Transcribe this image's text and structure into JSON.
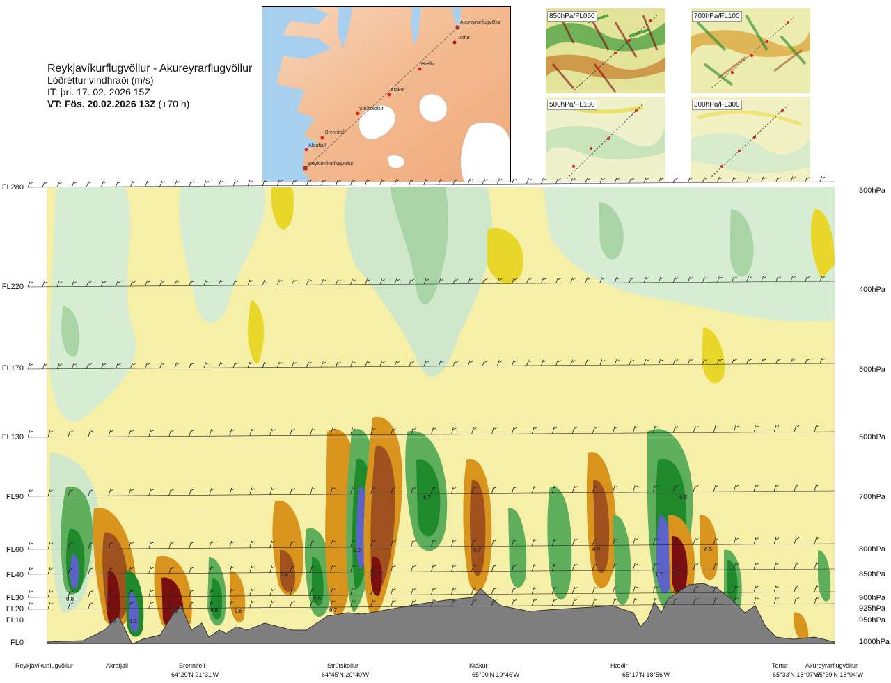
{
  "header": {
    "route": "Reykjavíkurflugvöllur - Akureyrarflugvöllur",
    "parameter": "Lóðréttur vindhraði (m/s)",
    "issue_time": "IT: þri. 17. 02. 2026 15Z",
    "valid_time": "VT: Fös. 20.02.2026 13Z",
    "lead_time": "(+70 h)"
  },
  "route_map": {
    "points": [
      {
        "name": "Akureyrarflugvöllur"
      },
      {
        "name": "Torfur"
      },
      {
        "name": "Hæðir"
      },
      {
        "name": "Krákur"
      },
      {
        "name": "Strútskollur"
      },
      {
        "name": "Brennifell"
      },
      {
        "name": "Akrafjall"
      },
      {
        "name": "Reykjavíkurflugvöllur"
      }
    ]
  },
  "level_maps": [
    {
      "label": "850hPa/FL050"
    },
    {
      "label": "700hPa/FL100"
    },
    {
      "label": "500hPa/FL180"
    },
    {
      "label": "300hPa/FL300"
    }
  ],
  "colors": {
    "terrain": "#7f7f7f",
    "up_strong": "#7b0f0f",
    "up_mid": "#a0521e",
    "up_light": "#d9941e",
    "up_weak": "#e8d62a",
    "up_faint": "#f5efa8",
    "down_faint": "#cfe8cc",
    "down_weak": "#a9d4a6",
    "down_mid": "#5fae5c",
    "down_strong": "#1e8a2c",
    "down_extreme": "#5b63c8"
  },
  "chart_data": {
    "type": "cross-section (vertical wind speed)",
    "title": "Lóðréttur vindhraði (m/s)",
    "x_waypoints": [
      {
        "name": "Reykjavíkurflugvöllur",
        "coord": ""
      },
      {
        "name": "Akrafjall",
        "coord": ""
      },
      {
        "name": "Brennifell",
        "coord": "64°29'N 21°31'W"
      },
      {
        "name": "Strútskollur",
        "coord": "64°45'N 20°40'W"
      },
      {
        "name": "Krákur",
        "coord": "65°00'N 19°46'W"
      },
      {
        "name": "Hæðir",
        "coord": "65°17'N 18°56'W"
      },
      {
        "name": "Torfur",
        "coord": "65°33'N 18°07'W"
      },
      {
        "name": "Akureyrarflugvöllur",
        "coord": "65°39'N 18°04'W"
      }
    ],
    "y_left_flight_levels": [
      "FL280",
      "FL220",
      "FL170",
      "FL130",
      "FL90",
      "FL60",
      "FL40",
      "FL30",
      "FL20",
      "FL10",
      "FL0"
    ],
    "y_right_pressure": [
      "300hPa",
      "400hPa",
      "500hPa",
      "600hPa",
      "700hPa",
      "800hPa",
      "850hPa",
      "900hPa",
      "925hPa",
      "950hPa",
      "1000hPa"
    ],
    "contour_labels": [
      "0.8",
      "1.0",
      "1.1",
      "1.5",
      "0.8",
      "0.5",
      "0.6",
      "0.6",
      "0.7",
      "1.0",
      "1.3",
      "0.7",
      "0.7",
      "0.5",
      "1.7",
      "1.4",
      "0.5",
      "0.5"
    ]
  }
}
